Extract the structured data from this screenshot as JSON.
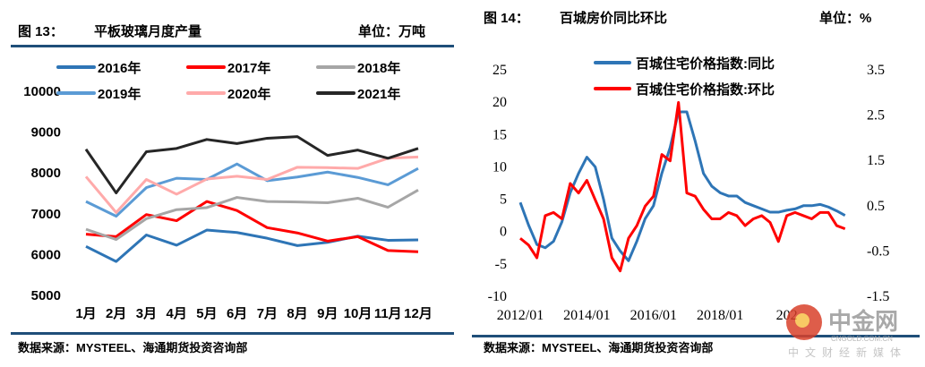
{
  "chart_data": [
    {
      "type": "line",
      "figure_label": "图 13：",
      "title": "平板玻璃月度产量",
      "unit_label": "单位：万吨",
      "source": "数据来源：MYSTEEL、海通期货投资咨询部",
      "categories": [
        "1月",
        "2月",
        "3月",
        "4月",
        "5月",
        "6月",
        "7月",
        "8月",
        "9月",
        "10月",
        "11月",
        "12月"
      ],
      "ylim": [
        5000,
        10000
      ],
      "yticks": [
        "10000",
        "9000",
        "8000",
        "7000",
        "6000",
        "5000"
      ],
      "legend_placement": "top",
      "series": [
        {
          "name": "2016年",
          "color": "#2E75B6",
          "values": [
            6200,
            5830,
            6480,
            6230,
            6600,
            6540,
            6400,
            6220,
            6300,
            6450,
            6350,
            6360
          ]
        },
        {
          "name": "2017年",
          "color": "#FF0000",
          "values": [
            6500,
            6440,
            6980,
            6830,
            7300,
            7080,
            6660,
            6530,
            6330,
            6440,
            6100,
            6070
          ]
        },
        {
          "name": "2018年",
          "color": "#A6A6A6",
          "values": [
            6620,
            6370,
            6880,
            7100,
            7150,
            7400,
            7300,
            7290,
            7270,
            7380,
            7160,
            7580
          ]
        },
        {
          "name": "2019年",
          "color": "#5B9BD5",
          "values": [
            7300,
            6940,
            7640,
            7870,
            7840,
            8220,
            7810,
            7900,
            8020,
            7890,
            7710,
            8110
          ]
        },
        {
          "name": "2020年",
          "color": "#FFAAAA",
          "values": [
            7910,
            7030,
            7840,
            7480,
            7850,
            7920,
            7840,
            8140,
            8130,
            8110,
            8360,
            8390
          ]
        },
        {
          "name": "2021年",
          "color": "#262626",
          "values": [
            8580,
            7510,
            8520,
            8600,
            8820,
            8720,
            8850,
            8890,
            8430,
            8560,
            8360,
            8600
          ]
        }
      ]
    },
    {
      "type": "line",
      "figure_label": "图 14：",
      "title": "百城房价同比环比",
      "unit_label": "单位：%",
      "source": "数据来源：MYSTEEL、海通期货投资咨询部",
      "x_labels": [
        "2012/01",
        "2014/01",
        "2016/01",
        "2018/01",
        "202"
      ],
      "x_start": "2012/01",
      "x_step_months": 3,
      "ylim_left": [
        -10,
        25
      ],
      "yticks_left": [
        "25",
        "20",
        "15",
        "10",
        "5",
        "0",
        "-5",
        "-10"
      ],
      "ylim_right": [
        -1.5,
        3.5
      ],
      "yticks_right": [
        "3.5",
        "2.5",
        "1.5",
        "0.5",
        "-0.5",
        "-1.5"
      ],
      "legend_placement": "top-center",
      "series": [
        {
          "name": "百城住宅价格指数:同比",
          "axis": "left",
          "color": "#2E75B6",
          "values": [
            4.5,
            1,
            -2,
            -2.5,
            -1.5,
            1.5,
            6,
            9,
            11.5,
            10,
            5,
            -1,
            -3,
            -4.5,
            -1.5,
            2,
            4,
            9,
            13,
            18.5,
            18.5,
            14,
            9,
            7,
            6,
            5.5,
            5.5,
            4.5,
            4,
            3.5,
            3,
            3,
            3.3,
            3.5,
            4,
            4,
            4.2,
            3.8,
            3.2,
            2.5
          ]
        },
        {
          "name": "百城住宅价格指数:环比",
          "axis": "right",
          "color": "#FF0000",
          "values": [
            -0.22,
            -0.37,
            -0.65,
            0.28,
            0.35,
            0.21,
            0.99,
            0.78,
            1.06,
            0.63,
            0.21,
            -0.65,
            -0.94,
            -0.22,
            0.06,
            0.49,
            0.71,
            1.63,
            1.49,
            2.78,
            0.78,
            0.71,
            0.42,
            0.21,
            0.21,
            0.35,
            0.28,
            0.06,
            0.21,
            0.28,
            0.13,
            -0.29,
            0.28,
            0.35,
            0.28,
            0.21,
            0.35,
            0.35,
            0.06,
            -0.01
          ]
        }
      ]
    }
  ],
  "watermark": {
    "brand": "中金网",
    "url": "CNGOLD.COM.CN",
    "tagline": "中文财经新媒体"
  }
}
